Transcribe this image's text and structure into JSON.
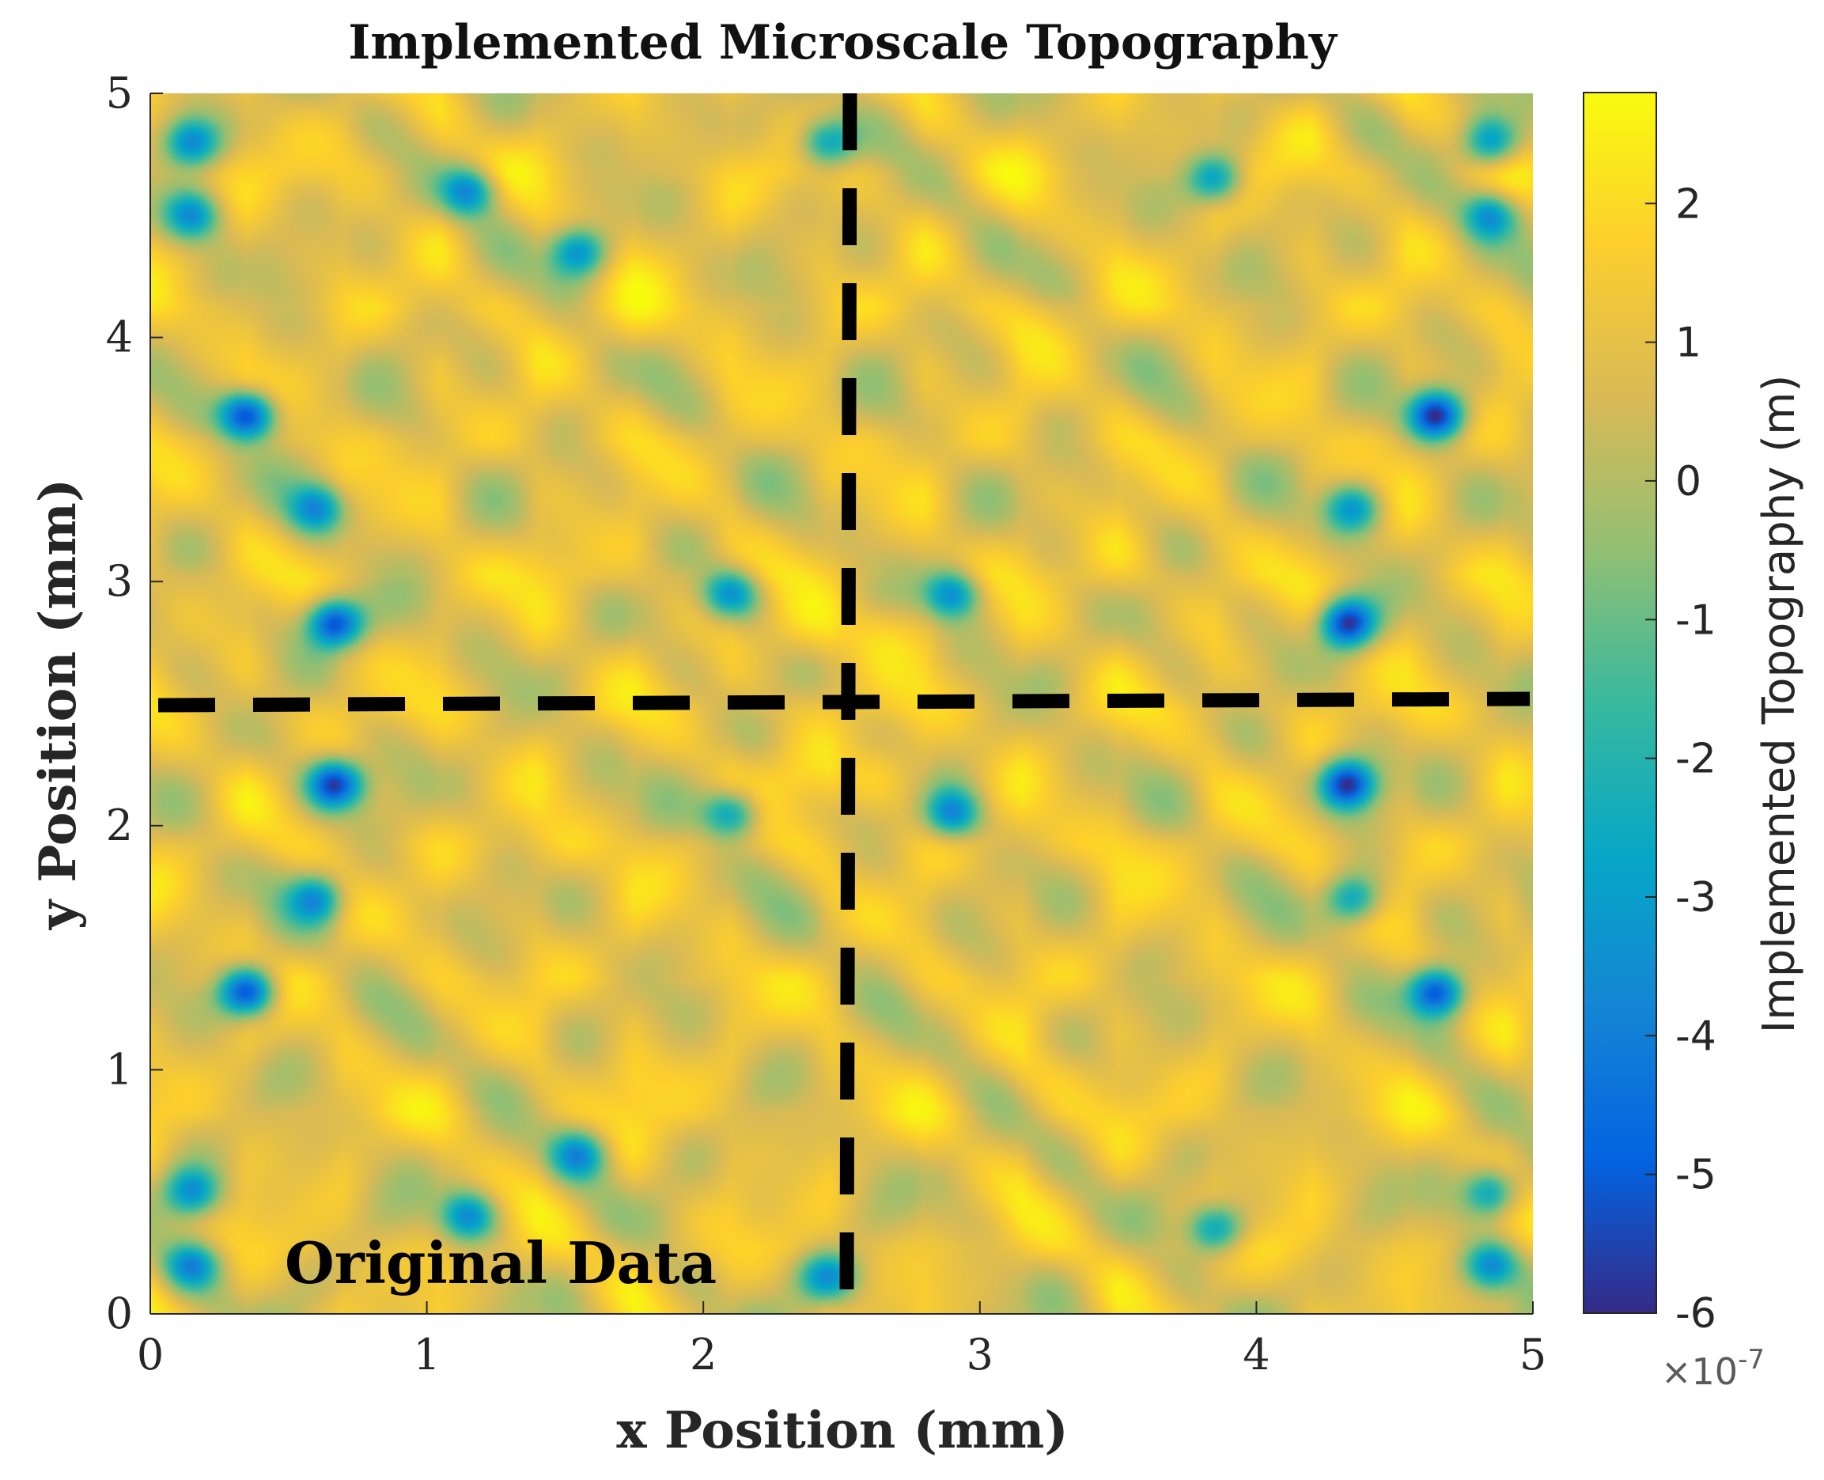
{
  "chart_data": {
    "type": "heatmap",
    "title": "Implemented Microscale Topography",
    "xlabel": "x Position (mm)",
    "ylabel": "y Position (mm)",
    "xlim": [
      0,
      5
    ],
    "ylim": [
      0,
      5
    ],
    "x_ticks": [
      0,
      1,
      2,
      3,
      4,
      5
    ],
    "y_ticks": [
      0,
      1,
      2,
      3,
      4,
      5
    ],
    "colorbar": {
      "label": "Implemented Topography (m)",
      "ticks": [
        2,
        1,
        0,
        -1,
        -2,
        -3,
        -4,
        -5,
        -6
      ],
      "range": [
        -6,
        2.8
      ],
      "multiplier": "×10",
      "exponent": "-7",
      "colormap": "parula",
      "colors": [
        "#352a87",
        "#0363e1",
        "#1485d4",
        "#06a7c6",
        "#38b99e",
        "#92bf73",
        "#d9ba56",
        "#fcce2e",
        "#f9fb0e"
      ]
    },
    "cut_lines": {
      "style": "dashed",
      "color": "#000000",
      "horizontal_y": 2.5,
      "vertical_x": 2.53
    },
    "annotation": "Original Data",
    "symmetry": "mirrored about x = 2.5 mm and y = 2.5 mm",
    "features": {
      "background_value": 1.2,
      "low_spots": [
        {
          "x": 0.35,
          "y": 3.68,
          "value": -5.6
        },
        {
          "x": 0.67,
          "y": 2.83,
          "value": -5.4
        },
        {
          "x": 0.67,
          "y": 2.17,
          "value": -5.4
        },
        {
          "x": 0.35,
          "y": 1.32,
          "value": -5.4
        },
        {
          "x": 4.65,
          "y": 3.68,
          "value": -5.6
        },
        {
          "x": 4.33,
          "y": 2.83,
          "value": -5.5
        },
        {
          "x": 4.33,
          "y": 2.17,
          "value": -5.5
        },
        {
          "x": 4.65,
          "y": 1.32,
          "value": -5.2
        },
        {
          "x": 0.15,
          "y": 4.8,
          "value": -3.2
        },
        {
          "x": 0.15,
          "y": 4.5,
          "value": -3.0
        },
        {
          "x": 1.15,
          "y": 4.6,
          "value": -3.2
        },
        {
          "x": 1.55,
          "y": 4.35,
          "value": -3.0
        },
        {
          "x": 3.85,
          "y": 4.65,
          "value": -3.0
        },
        {
          "x": 4.85,
          "y": 4.8,
          "value": -3.2
        },
        {
          "x": 4.85,
          "y": 4.5,
          "value": -3.0
        },
        {
          "x": 2.1,
          "y": 2.95,
          "value": -3.2
        },
        {
          "x": 2.9,
          "y": 2.95,
          "value": -3.2
        },
        {
          "x": 2.1,
          "y": 2.05,
          "value": -3.2
        },
        {
          "x": 2.9,
          "y": 2.05,
          "value": -3.2
        },
        {
          "x": 0.6,
          "y": 3.3,
          "value": -2.8
        },
        {
          "x": 4.35,
          "y": 3.3,
          "value": -2.8
        },
        {
          "x": 0.6,
          "y": 1.7,
          "value": -2.8
        },
        {
          "x": 4.35,
          "y": 1.7,
          "value": -2.8
        },
        {
          "x": 0.15,
          "y": 0.2,
          "value": -3.2
        },
        {
          "x": 0.15,
          "y": 0.5,
          "value": -3.0
        },
        {
          "x": 1.15,
          "y": 0.4,
          "value": -3.0
        },
        {
          "x": 1.55,
          "y": 0.65,
          "value": -3.0
        },
        {
          "x": 3.85,
          "y": 0.35,
          "value": -3.0
        },
        {
          "x": 4.85,
          "y": 0.2,
          "value": -3.2
        },
        {
          "x": 4.85,
          "y": 0.5,
          "value": -3.0
        },
        {
          "x": 2.45,
          "y": 4.8,
          "value": -3.0
        },
        {
          "x": 2.45,
          "y": 0.15,
          "value": -3.0
        }
      ],
      "high_spots": [
        {
          "x": 2.35,
          "y": 2.8,
          "value": 2.8
        },
        {
          "x": 2.65,
          "y": 2.8,
          "value": 2.8
        },
        {
          "x": 2.35,
          "y": 2.2,
          "value": 2.8
        },
        {
          "x": 2.65,
          "y": 2.2,
          "value": 2.8
        },
        {
          "x": 1.75,
          "y": 4.05,
          "value": 2.2
        },
        {
          "x": 3.25,
          "y": 4.05,
          "value": 2.2
        },
        {
          "x": 1.75,
          "y": 0.97,
          "value": 2.2
        },
        {
          "x": 3.25,
          "y": 0.97,
          "value": 2.2
        },
        {
          "x": 1.5,
          "y": 3.1,
          "value": 2.0
        },
        {
          "x": 3.5,
          "y": 3.1,
          "value": 2.0
        },
        {
          "x": 1.5,
          "y": 1.9,
          "value": 2.0
        },
        {
          "x": 3.5,
          "y": 1.9,
          "value": 2.0
        },
        {
          "x": 0.85,
          "y": 4.8,
          "value": 1.8
        },
        {
          "x": 4.1,
          "y": 4.8,
          "value": 1.8
        },
        {
          "x": 4.1,
          "y": 0.25,
          "value": 1.8
        }
      ]
    }
  }
}
